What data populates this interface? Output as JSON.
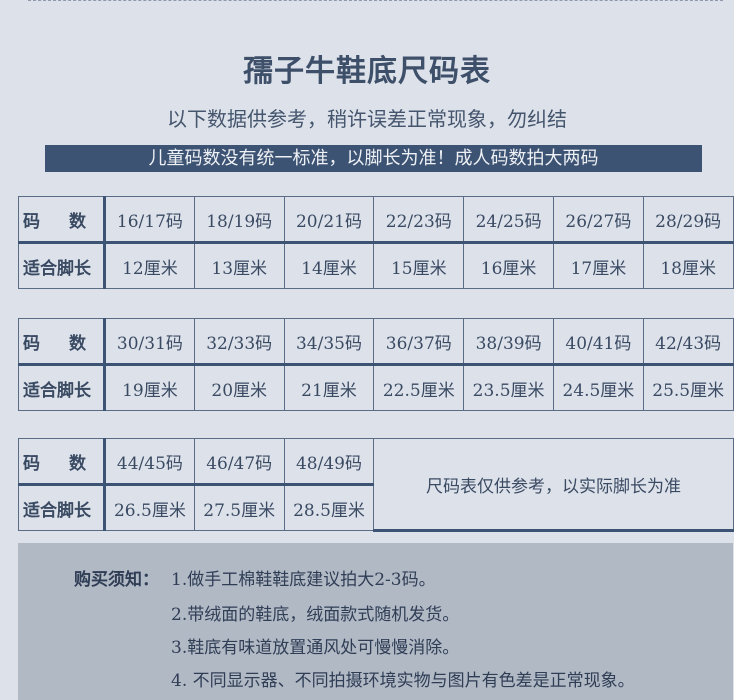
{
  "title": "孺子牛鞋底尺码表",
  "subtitle": "以下数据供参考，稍许误差正常现象，勿纠结",
  "banner": "儿童码数没有统一标准，以脚长为准！成人码数拍大两码",
  "row_labels": {
    "size_a": "码",
    "size_b": "数",
    "foot": "适合脚长"
  },
  "tables": [
    {
      "sizes": [
        "16/17码",
        "18/19码",
        "20/21码",
        "22/23码",
        "24/25码",
        "26/27码",
        "28/29码"
      ],
      "lengths": [
        "12厘米",
        "13厘米",
        "14厘米",
        "15厘米",
        "16厘米",
        "17厘米",
        "18厘米"
      ]
    },
    {
      "sizes": [
        "30/31码",
        "32/33码",
        "34/35码",
        "36/37码",
        "38/39码",
        "40/41码",
        "42/43码"
      ],
      "lengths": [
        "19厘米",
        "20厘米",
        "21厘米",
        "22.5厘米",
        "23.5厘米",
        "24.5厘米",
        "25.5厘米"
      ]
    },
    {
      "sizes": [
        "44/45码",
        "46/47码",
        "48/49码"
      ],
      "lengths": [
        "26.5厘米",
        "27.5厘米",
        "28.5厘米"
      ],
      "note": "尺码表仅供参考，以实际脚长为准"
    }
  ],
  "notes": {
    "heading": "购买须知：",
    "items": [
      "1.做手工棉鞋鞋底建议拍大2-3码。",
      "2.带绒面的鞋底，绒面款式随机发货。",
      "3.鞋底有味道放置通风处可慢慢消除。",
      "4. 不同显示器、不同拍摄环境实物与图片有色差是正常现象。"
    ]
  },
  "colors": {
    "background": "#dde2ea",
    "accent": "#3d5373",
    "notes_bg": "#b1b9c5"
  }
}
